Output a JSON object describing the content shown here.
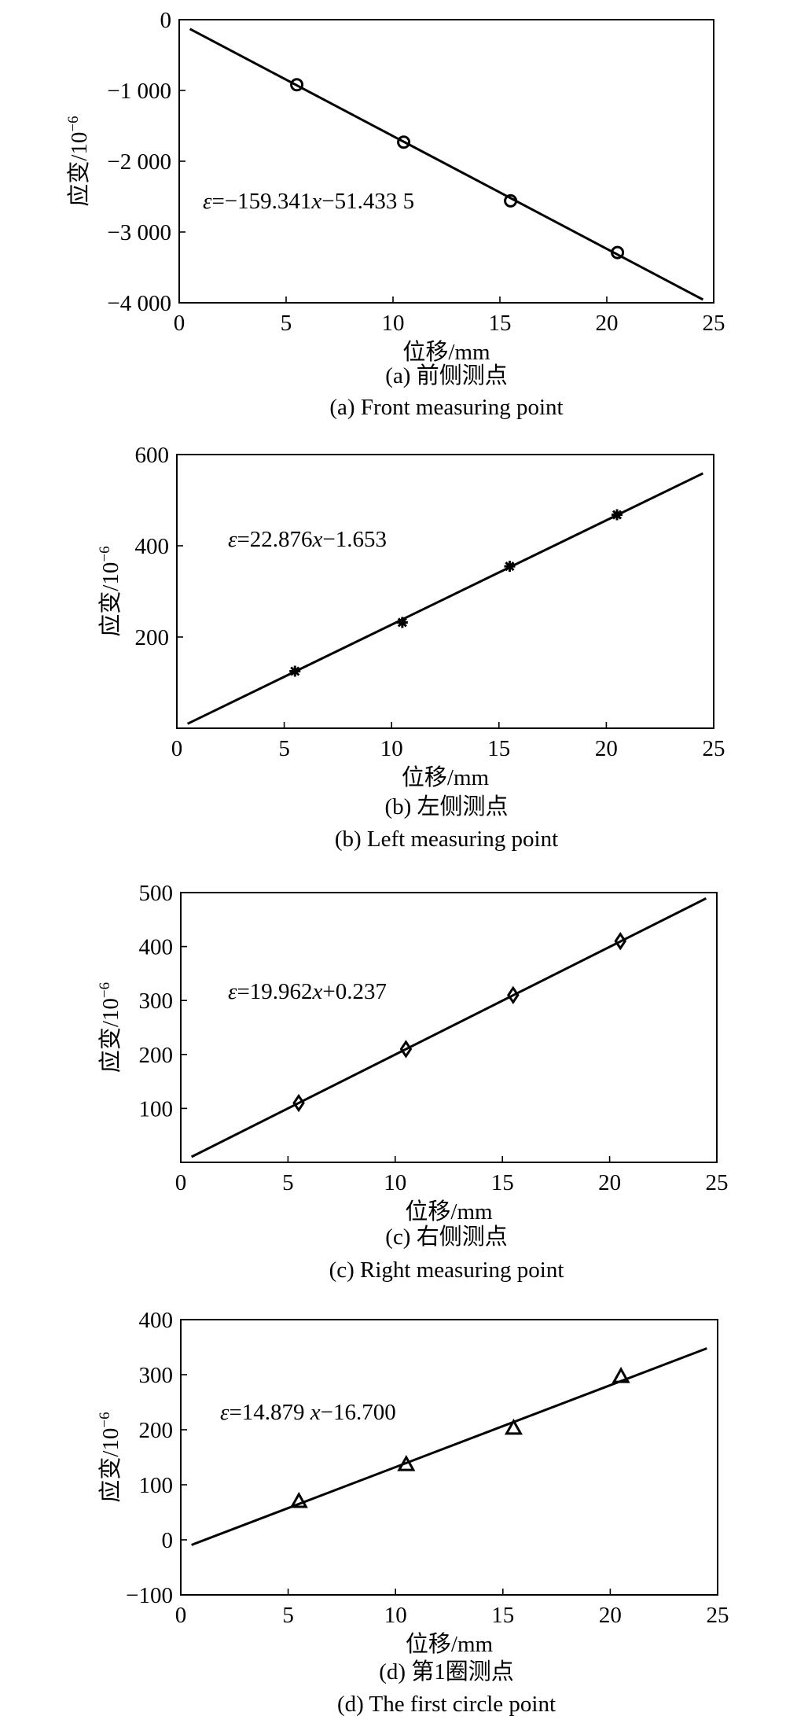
{
  "chart_data": [
    {
      "type": "scatter",
      "xlabel": "位移/mm",
      "ylabel": "应变/10",
      "ylabel_exponent": "−6",
      "xlim": [
        0,
        25
      ],
      "ylim": [
        -4000,
        0
      ],
      "x_ticks": [
        0,
        5,
        10,
        15,
        20,
        25
      ],
      "y_ticks": [
        -4000,
        -3000,
        -2000,
        -1000,
        0
      ],
      "x_tick_labels": [
        "0",
        "5",
        "10",
        "15",
        "20",
        "25"
      ],
      "y_tick_labels": [
        "−4 000",
        "−3 000",
        "−2 000",
        "−1 000",
        "0"
      ],
      "grid": false,
      "marker": "circle",
      "x": [
        5.5,
        10.5,
        15.5,
        20.5
      ],
      "y": [
        -920,
        -1730,
        -2560,
        -3290
      ],
      "fit": {
        "slope": -159.341,
        "intercept": -51.4335,
        "x_range": [
          0.5,
          24.5
        ]
      },
      "equation": {
        "eps": "ε",
        "eq": "=−159.341",
        "var": "x",
        "rest": "−51.433 5"
      },
      "caption_cn": "(a) 前侧测点",
      "caption_en": "(a) Front measuring point"
    },
    {
      "type": "scatter",
      "xlabel": "位移/mm",
      "ylabel": "应变/10",
      "ylabel_exponent": "−6",
      "xlim": [
        0,
        25
      ],
      "ylim": [
        0,
        600
      ],
      "x_ticks": [
        0,
        5,
        10,
        15,
        20,
        25
      ],
      "y_ticks": [
        200,
        400,
        600
      ],
      "x_tick_labels": [
        "0",
        "5",
        "10",
        "15",
        "20",
        "25"
      ],
      "y_tick_labels": [
        "200",
        "400",
        "600"
      ],
      "grid": false,
      "marker": "asterisk",
      "x": [
        5.5,
        10.5,
        15.5,
        20.5
      ],
      "y": [
        125,
        232,
        355,
        468
      ],
      "fit": {
        "slope": 22.876,
        "intercept": -1.653,
        "x_range": [
          0.5,
          24.5
        ]
      },
      "equation": {
        "eps": "ε",
        "eq": "=22.876",
        "var": "x",
        "rest": "−1.653"
      },
      "caption_cn": "(b) 左侧测点",
      "caption_en": "(b) Left measuring point"
    },
    {
      "type": "scatter",
      "xlabel": "位移/mm",
      "ylabel": "应变/10",
      "ylabel_exponent": "−6",
      "xlim": [
        0,
        25
      ],
      "ylim": [
        0,
        500
      ],
      "x_ticks": [
        0,
        5,
        10,
        15,
        20,
        25
      ],
      "y_ticks": [
        100,
        200,
        300,
        400,
        500
      ],
      "x_tick_labels": [
        "0",
        "5",
        "10",
        "15",
        "20",
        "25"
      ],
      "y_tick_labels": [
        "100",
        "200",
        "300",
        "400",
        "500"
      ],
      "grid": false,
      "marker": "diamond",
      "x": [
        5.5,
        10.5,
        15.5,
        20.5
      ],
      "y": [
        110,
        210,
        310,
        410
      ],
      "fit": {
        "slope": 19.962,
        "intercept": 0.237,
        "x_range": [
          0.5,
          24.5
        ]
      },
      "equation": {
        "eps": "ε",
        "eq": "=19.962",
        "var": "x",
        "rest": "+0.237"
      },
      "caption_cn": "(c) 右侧测点",
      "caption_en": "(c) Right measuring point"
    },
    {
      "type": "scatter",
      "xlabel": "位移/mm",
      "ylabel": "应变/10",
      "ylabel_exponent": "−6",
      "xlim": [
        0,
        25
      ],
      "ylim": [
        -100,
        400
      ],
      "x_ticks": [
        0,
        5,
        10,
        15,
        20,
        25
      ],
      "y_ticks": [
        -100,
        0,
        100,
        200,
        300,
        400
      ],
      "x_tick_labels": [
        "0",
        "5",
        "10",
        "15",
        "20",
        "25"
      ],
      "y_tick_labels": [
        "−100",
        "0",
        "100",
        "200",
        "300",
        "400"
      ],
      "grid": false,
      "marker": "triangle",
      "x": [
        5.5,
        10.5,
        15.5,
        20.5
      ],
      "y": [
        70,
        137,
        203,
        297
      ],
      "fit": {
        "slope": 14.879,
        "intercept": -16.7,
        "x_range": [
          0.5,
          24.5
        ]
      },
      "equation": {
        "eps": "ε",
        "eq": "=14.879 ",
        "var": "x",
        "rest": "−16.700"
      },
      "caption_cn": "(d) 第1圈测点",
      "caption_en": "(d) The first circle point"
    }
  ]
}
